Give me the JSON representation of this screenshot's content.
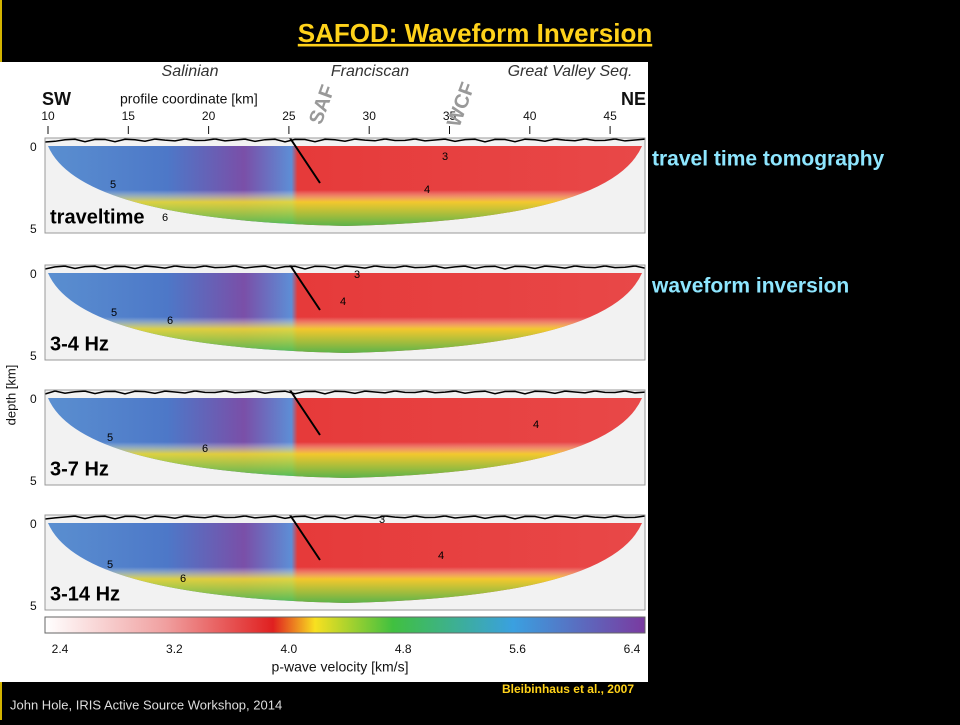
{
  "slide": {
    "title": "SAFOD: Waveform Inversion ",
    "side_labels": [
      "travel time tomography",
      "waveform inversion"
    ],
    "footer": "John Hole, IRIS Active Source Workshop, 2014",
    "citation": "Bleibinhaus et al., 2007"
  },
  "figure": {
    "units": [
      "Salinian",
      "Franciscan",
      "Great Valley Seq."
    ],
    "left_end": "SW",
    "right_end": "NE",
    "x_axis_label": "profile coordinate [km]",
    "x_ticks": [
      "10",
      "15",
      "20",
      "25",
      "30",
      "35",
      "40",
      "45"
    ],
    "faults": [
      "SAF",
      "WCF"
    ],
    "y_axis_label": "depth [km]",
    "depth_ticks": [
      "0",
      "5"
    ],
    "panels": [
      {
        "label": "traveltime",
        "contours": [
          "3",
          "4",
          "5",
          "6"
        ]
      },
      {
        "label": "3-4 Hz",
        "contours": [
          "3",
          "4",
          "5",
          "6"
        ]
      },
      {
        "label": "3-7 Hz",
        "contours": [
          "5",
          "6",
          "4"
        ]
      },
      {
        "label": "3-14 Hz",
        "contours": [
          "3",
          "4",
          "5",
          "6"
        ]
      }
    ],
    "colorbar_ticks": [
      "2.4",
      "3.2",
      "4.0",
      "4.8",
      "5.6",
      "6.4"
    ],
    "colorbar_label": "p-wave velocity [km/s]"
  }
}
